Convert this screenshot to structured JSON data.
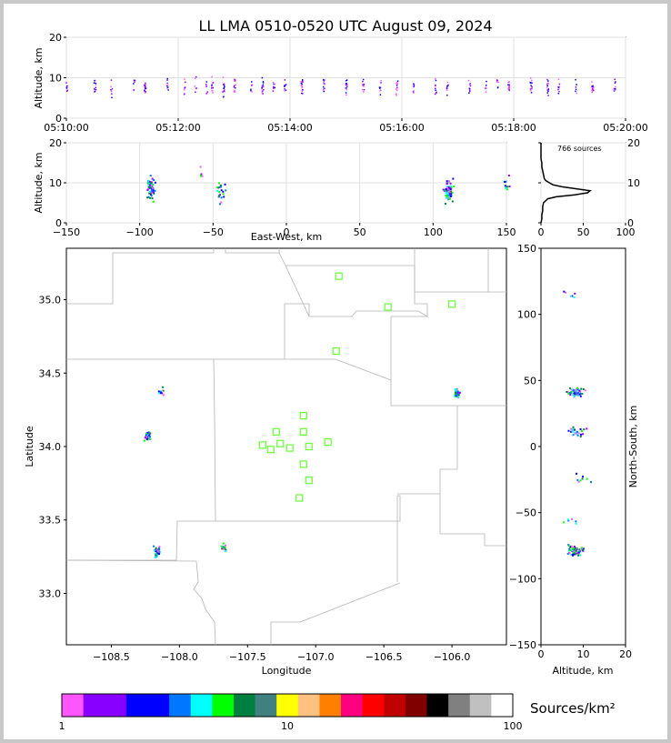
{
  "title": "LL LMA 0510-0520 UTC August 09, 2024",
  "colors": {
    "frame": "#c8c8c8",
    "grid": "#e0e0e0",
    "border": "#b4b4b4",
    "station": "#66ff33",
    "colorbar": [
      "#ff55ff",
      "#8800ff",
      "#8800ff",
      "#0000ff",
      "#0000ff",
      "#0077ff",
      "#00ffff",
      "#00ff00",
      "#008040",
      "#408080",
      "#ffff00",
      "#ffc080",
      "#ff8000",
      "#ff0080",
      "#ff0000",
      "#c00000",
      "#800000",
      "#000000",
      "#808080",
      "#c0c0c0",
      "#ffffff"
    ]
  },
  "chart_data": [
    {
      "type": "scatter",
      "panel": "time-altitude",
      "ylabel": "Altitude, km",
      "ylim": [
        0,
        20
      ],
      "yticks": [
        "0",
        "10",
        "20"
      ],
      "xlim_minutes": [
        0,
        10
      ],
      "xticks": [
        "05:10:00",
        "05:12:00",
        "05:14:00",
        "05:16:00",
        "05:18:00",
        "05:20:00"
      ],
      "grid": true
    },
    {
      "type": "scatter",
      "panel": "east-west-altitude",
      "xlabel": "East-West, km",
      "ylabel": "Altitude, km",
      "xlim": [
        -150,
        150
      ],
      "ylim": [
        0,
        20
      ],
      "xticks": [
        "−150",
        "−100",
        "−50",
        "0",
        "50",
        "100",
        "150"
      ],
      "yticks": [
        "0",
        "10",
        "20"
      ],
      "grid": true
    },
    {
      "type": "line",
      "panel": "altitude-histogram",
      "annotation": "766 sources",
      "xlim": [
        0,
        100
      ],
      "ylim": [
        0,
        20
      ],
      "xticks": [
        "0",
        "50",
        "100"
      ],
      "yticks": [
        "0",
        "10",
        "20"
      ],
      "profile": [
        [
          0,
          0
        ],
        [
          1,
          1
        ],
        [
          1,
          2
        ],
        [
          2,
          3
        ],
        [
          2,
          4
        ],
        [
          3,
          5
        ],
        [
          8,
          6
        ],
        [
          18,
          6.5
        ],
        [
          40,
          7
        ],
        [
          55,
          7.5
        ],
        [
          58,
          8
        ],
        [
          42,
          8.5
        ],
        [
          25,
          9
        ],
        [
          14,
          9.5
        ],
        [
          10,
          10
        ],
        [
          6,
          10.5
        ],
        [
          4,
          11
        ],
        [
          3,
          12
        ],
        [
          2,
          13
        ],
        [
          1,
          14
        ],
        [
          1,
          15
        ],
        [
          0,
          16
        ],
        [
          0,
          20
        ]
      ]
    },
    {
      "type": "scatter",
      "panel": "plan-view",
      "xlabel": "Longitude",
      "ylabel": "Latitude",
      "xlim": [
        -108.83,
        -105.6
      ],
      "ylim": [
        32.65,
        35.35
      ],
      "xticks": [
        "−108.5",
        "−108.0",
        "−107.5",
        "−107.0",
        "−106.5",
        "−106.0"
      ],
      "yticks": [
        "33.0",
        "33.5",
        "34.0",
        "34.5",
        "35.0"
      ],
      "stations": [
        [
          -106.83,
          35.16
        ],
        [
          -106.47,
          34.95
        ],
        [
          -106.0,
          34.97
        ],
        [
          -106.85,
          34.65
        ],
        [
          -107.09,
          34.21
        ],
        [
          -107.29,
          34.1
        ],
        [
          -107.09,
          34.1
        ],
        [
          -107.39,
          34.01
        ],
        [
          -107.26,
          34.02
        ],
        [
          -107.33,
          33.98
        ],
        [
          -107.19,
          33.99
        ],
        [
          -107.05,
          34.0
        ],
        [
          -106.91,
          34.03
        ],
        [
          -107.09,
          33.88
        ],
        [
          -107.05,
          33.77
        ],
        [
          -107.12,
          33.65
        ]
      ],
      "clusters": [
        {
          "lon": -108.24,
          "lat": 34.07,
          "n": 30
        },
        {
          "lon": -108.17,
          "lat": 33.29,
          "n": 40
        },
        {
          "lon": -107.68,
          "lat": 33.32,
          "n": 12
        },
        {
          "lon": -108.13,
          "lat": 34.39,
          "n": 8
        },
        {
          "lon": -105.97,
          "lat": 34.37,
          "n": 45
        }
      ]
    },
    {
      "type": "scatter",
      "panel": "altitude-north-south",
      "xlabel": "Altitude, km",
      "ylabel": "North-South, km",
      "xlim": [
        0,
        20
      ],
      "ylim": [
        -150,
        150
      ],
      "xticks": [
        "0",
        "10",
        "20"
      ],
      "yticks": [
        "−150",
        "−100",
        "−50",
        "0",
        "50",
        "100",
        "150"
      ]
    }
  ],
  "colorbar": {
    "label": "Sources/km²",
    "ticks": [
      "1",
      "10",
      "100"
    ]
  }
}
